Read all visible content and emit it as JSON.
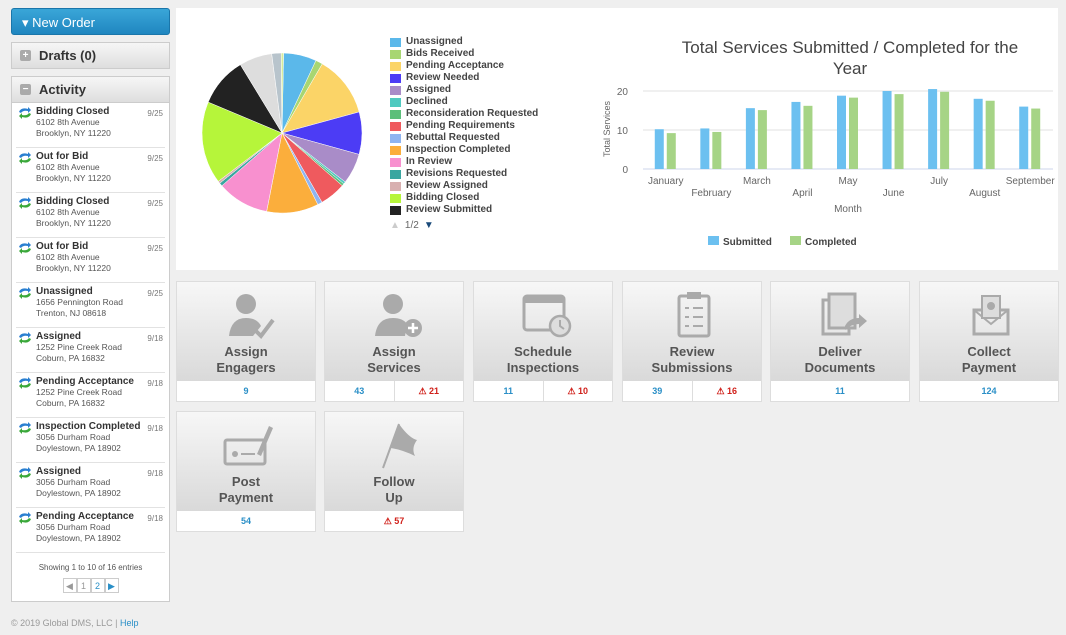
{
  "sidebar": {
    "new_order": "New Order",
    "drafts": "Drafts (0)",
    "activity": "Activity",
    "items": [
      {
        "status": "Bidding Closed",
        "line1": "6102 8th Avenue",
        "line2": "Brooklyn, NY 11220",
        "date": "9/25"
      },
      {
        "status": "Out for Bid",
        "line1": "6102 8th Avenue",
        "line2": "Brooklyn, NY 11220",
        "date": "9/25"
      },
      {
        "status": "Bidding Closed",
        "line1": "6102 8th Avenue",
        "line2": "Brooklyn, NY 11220",
        "date": "9/25"
      },
      {
        "status": "Out for Bid",
        "line1": "6102 8th Avenue",
        "line2": "Brooklyn, NY 11220",
        "date": "9/25"
      },
      {
        "status": "Unassigned",
        "line1": "1656 Pennington Road",
        "line2": "Trenton, NJ 08618",
        "date": "9/25"
      },
      {
        "status": "Assigned",
        "line1": "1252 Pine Creek Road",
        "line2": "Coburn, PA 16832",
        "date": "9/18"
      },
      {
        "status": "Pending Acceptance",
        "line1": "1252 Pine Creek Road",
        "line2": "Coburn, PA 16832",
        "date": "9/18"
      },
      {
        "status": "Inspection Completed",
        "line1": "3056 Durham Road",
        "line2": "Doylestown, PA 18902",
        "date": "9/18"
      },
      {
        "status": "Assigned",
        "line1": "3056 Durham Road",
        "line2": "Doylestown, PA 18902",
        "date": "9/18"
      },
      {
        "status": "Pending Acceptance",
        "line1": "3056 Durham Road",
        "line2": "Doylestown, PA 18902",
        "date": "9/18"
      }
    ],
    "showing": "Showing 1 to 10 of 16 entries",
    "pages": [
      "1",
      "2"
    ]
  },
  "footer": {
    "copyright": "© 2019 Global DMS, LLC  |",
    "help": "Help"
  },
  "chart_data": [
    {
      "type": "pie",
      "legend_page": "1/2",
      "legend_placement": "right",
      "slices": [
        {
          "name": "Unassigned",
          "value": 7,
          "color": "#5bb8ea"
        },
        {
          "name": "Bids Received",
          "value": 1.5,
          "color": "#a8d672"
        },
        {
          "name": "Pending Acceptance",
          "value": 13,
          "color": "#fbd467"
        },
        {
          "name": "Review Needed",
          "value": 9,
          "color": "#4c3cf5"
        },
        {
          "name": "Assigned",
          "value": 6.5,
          "color": "#a98cc8"
        },
        {
          "name": "Declined",
          "value": 0.5,
          "color": "#4fc9c0"
        },
        {
          "name": "Reconsideration Requested",
          "value": 0.5,
          "color": "#5cbf7a"
        },
        {
          "name": "Pending Requirements",
          "value": 5.5,
          "color": "#ef5a5e"
        },
        {
          "name": "Rebuttal Requested",
          "value": 1,
          "color": "#8fb4f0"
        },
        {
          "name": "Inspection Completed",
          "value": 11,
          "color": "#fbae3c"
        },
        {
          "name": "In Review",
          "value": 11,
          "color": "#f890cf"
        },
        {
          "name": "Revisions Requested",
          "value": 0.7,
          "color": "#3aa6a0"
        },
        {
          "name": "Review Assigned",
          "value": 0.5,
          "color": "#d8b0b0"
        },
        {
          "name": "Bidding Closed",
          "value": 17.5,
          "color": "#b6f53a"
        },
        {
          "name": "Review Submitted",
          "value": 10.5,
          "color": "#222222"
        },
        {
          "name": "",
          "value": 7,
          "color": "#dddddd"
        },
        {
          "name": "",
          "value": 2,
          "color": "#b8c4cc"
        },
        {
          "name": "",
          "value": 0.5,
          "color": "#d6ec9a"
        }
      ]
    },
    {
      "type": "bar",
      "title": "Total Services Submitted / Completed for the Year",
      "xlabel": "Month",
      "ylabel": "Total Services",
      "ylim": [
        0,
        22
      ],
      "yticks": [
        0,
        10,
        20
      ],
      "grid": true,
      "legend_placement": "bottom",
      "categories": [
        "January",
        "February",
        "March",
        "April",
        "May",
        "June",
        "July",
        "August",
        "September"
      ],
      "series": [
        {
          "name": "Submitted",
          "color": "#6cc0f0",
          "values": [
            10.2,
            10.4,
            15.6,
            17.2,
            18.8,
            20,
            20.5,
            18,
            16
          ]
        },
        {
          "name": "Completed",
          "color": "#a6d486",
          "values": [
            9.2,
            9.5,
            15.1,
            16.2,
            18.3,
            19.2,
            19.8,
            17.5,
            15.5
          ]
        }
      ]
    }
  ],
  "tiles": [
    {
      "label1": "Assign",
      "label2": "Engagers",
      "icon": "user-check-icon",
      "count": "9"
    },
    {
      "label1": "Assign",
      "label2": "Services",
      "icon": "user-add-icon",
      "count": "43",
      "alert": "21"
    },
    {
      "label1": "Schedule",
      "label2": "Inspections",
      "icon": "calendar-clock-icon",
      "count": "11",
      "alert": "10"
    },
    {
      "label1": "Review",
      "label2": "Submissions",
      "icon": "clipboard-icon",
      "count": "39",
      "alert": "16"
    },
    {
      "label1": "Deliver",
      "label2": "Documents",
      "icon": "documents-forward-icon",
      "count": "11"
    },
    {
      "label1": "Collect",
      "label2": "Payment",
      "icon": "envelope-money-icon",
      "count": "124"
    },
    {
      "label1": "Post",
      "label2": "Payment",
      "icon": "check-pen-icon",
      "count": "54"
    },
    {
      "label1": "Follow",
      "label2": "Up",
      "icon": "flag-icon",
      "alert": "57"
    }
  ]
}
